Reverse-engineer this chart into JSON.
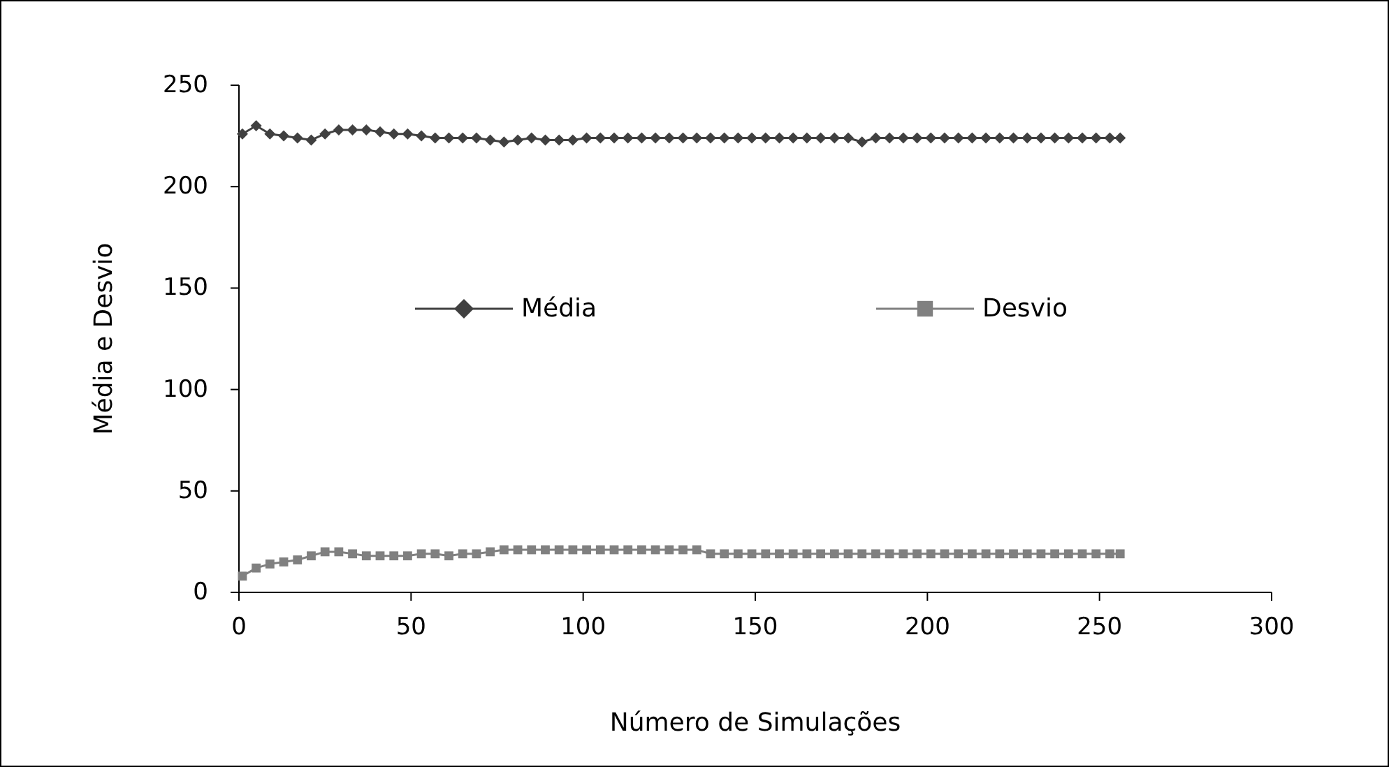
{
  "chart_data": {
    "type": "line",
    "xlabel": "Número de Simulações",
    "ylabel": "Média e Desvio",
    "xlim": [
      0,
      300
    ],
    "xticks": [
      0,
      50,
      100,
      150,
      200,
      250,
      300
    ],
    "ylim": [
      0,
      250
    ],
    "yticks": [
      0,
      50,
      100,
      150,
      200,
      250
    ],
    "grid": false,
    "legend": "center",
    "line_style": "solid",
    "marker": "diamond",
    "series": [
      {
        "name": "Média",
        "color": "#404040",
        "x": [
          1,
          5,
          9,
          13,
          17,
          21,
          25,
          29,
          33,
          37,
          41,
          45,
          49,
          53,
          57,
          61,
          65,
          69,
          73,
          77,
          81,
          85,
          89,
          93,
          97,
          101,
          105,
          109,
          113,
          117,
          121,
          125,
          129,
          133,
          137,
          141,
          145,
          149,
          153,
          157,
          161,
          165,
          169,
          173,
          177,
          181,
          185,
          189,
          193,
          197,
          201,
          205,
          209,
          213,
          217,
          221,
          225,
          229,
          233,
          237,
          241,
          245,
          249,
          253,
          256
        ],
        "values": [
          226,
          230,
          226,
          225,
          224,
          223,
          226,
          228,
          228,
          228,
          227,
          226,
          226,
          225,
          224,
          224,
          224,
          224,
          223,
          222,
          223,
          224,
          223,
          223,
          223,
          224,
          224,
          224,
          224,
          224,
          224,
          224,
          224,
          224,
          224,
          224,
          224,
          224,
          224,
          224,
          224,
          224,
          224,
          224,
          224,
          222,
          224,
          224,
          224,
          224,
          224,
          224,
          224,
          224,
          224,
          224,
          224,
          224,
          224,
          224,
          224,
          224,
          224,
          224,
          224
        ]
      },
      {
        "name": "Desvio",
        "color": "#808080",
        "marker": "square",
        "x": [
          1,
          5,
          9,
          13,
          17,
          21,
          25,
          29,
          33,
          37,
          41,
          45,
          49,
          53,
          57,
          61,
          65,
          69,
          73,
          77,
          81,
          85,
          89,
          93,
          97,
          101,
          105,
          109,
          113,
          117,
          121,
          125,
          129,
          133,
          137,
          141,
          145,
          149,
          153,
          157,
          161,
          165,
          169,
          173,
          177,
          181,
          185,
          189,
          193,
          197,
          201,
          205,
          209,
          213,
          217,
          221,
          225,
          229,
          233,
          237,
          241,
          245,
          249,
          253,
          256
        ],
        "values": [
          8,
          12,
          14,
          15,
          16,
          18,
          20,
          20,
          19,
          18,
          18,
          18,
          18,
          19,
          19,
          18,
          19,
          19,
          20,
          21,
          21,
          21,
          21,
          21,
          21,
          21,
          21,
          21,
          21,
          21,
          21,
          21,
          21,
          21,
          19,
          19,
          19,
          19,
          19,
          19,
          19,
          19,
          19,
          19,
          19,
          19,
          19,
          19,
          19,
          19,
          19,
          19,
          19,
          19,
          19,
          19,
          19,
          19,
          19,
          19,
          19,
          19,
          19,
          19,
          19
        ]
      }
    ]
  }
}
